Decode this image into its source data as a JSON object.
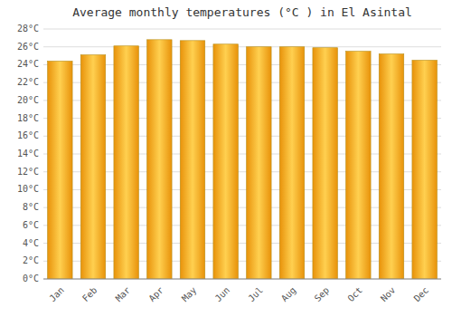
{
  "chart_data": {
    "type": "bar",
    "title": "Average monthly temperatures (°C ) in El Asintal",
    "categories": [
      "Jan",
      "Feb",
      "Mar",
      "Apr",
      "May",
      "Jun",
      "Jul",
      "Aug",
      "Sep",
      "Oct",
      "Nov",
      "Dec"
    ],
    "values": [
      24.4,
      25.1,
      26.1,
      26.8,
      26.7,
      26.3,
      26.0,
      26.0,
      25.9,
      25.5,
      25.2,
      24.5
    ],
    "color": "#E8920A",
    "ylim": [
      0,
      28
    ],
    "yticks": [
      {
        "value": 0,
        "label": "0°C"
      },
      {
        "value": 2,
        "label": "2°C"
      },
      {
        "value": 4,
        "label": "4°C"
      },
      {
        "value": 6,
        "label": "6°C"
      },
      {
        "value": 8,
        "label": "8°C"
      },
      {
        "value": 10,
        "label": "10°C"
      },
      {
        "value": 12,
        "label": "12°C"
      },
      {
        "value": 14,
        "label": "14°C"
      },
      {
        "value": 16,
        "label": "16°C"
      },
      {
        "value": 18,
        "label": "18°C"
      },
      {
        "value": 20,
        "label": "20°C"
      },
      {
        "value": 22,
        "label": "22°C"
      },
      {
        "value": 24,
        "label": "24°C"
      },
      {
        "value": 26,
        "label": "26°C"
      },
      {
        "value": 28,
        "label": "28°C"
      }
    ],
    "grid": true
  }
}
